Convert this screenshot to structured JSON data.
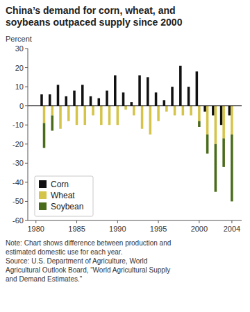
{
  "chart_data": {
    "type": "bar",
    "title": "China’s demand for corn, wheat, and\nsoybeans outpaced supply since 2000",
    "ylabel": "Percent",
    "note": "Note: Chart shows difference between production and\nestimated domestic use for each year.\nSource: U.S. Department of Agriculture, World\nAgricultural Outlook Board, “World Agricultural Supply\nand Demand Estimates.”",
    "x": [
      1980,
      1981,
      1982,
      1983,
      1984,
      1985,
      1986,
      1987,
      1988,
      1989,
      1990,
      1991,
      1992,
      1993,
      1994,
      1995,
      1996,
      1997,
      1998,
      1999,
      2000,
      2001,
      2002,
      2003,
      2004
    ],
    "series": [
      {
        "name": "Corn",
        "color": "#111111",
        "values": [
          0,
          6,
          6,
          11,
          5,
          8,
          11,
          5,
          4,
          8,
          16,
          7,
          2,
          16,
          15,
          7,
          3,
          10,
          21,
          10,
          18,
          -3,
          -5,
          -10,
          -5
        ]
      },
      {
        "name": "Wheat",
        "color": "#d4c44a",
        "stacked": true,
        "values": [
          0,
          -9,
          -5,
          -12,
          -8,
          -10,
          -10,
          -5,
          -10,
          -10,
          -10,
          -2,
          -5,
          -12,
          -15,
          -8,
          -3,
          -5,
          -5,
          -5,
          -8,
          -15,
          -20,
          -17,
          -15
        ]
      },
      {
        "name": "Soybean",
        "color": "#4a6b1a",
        "stacked": true,
        "values": [
          0,
          -13,
          -8,
          0,
          0,
          0,
          0,
          0,
          0,
          0,
          0,
          0,
          0,
          0,
          0,
          0,
          0,
          0,
          0,
          0,
          -3,
          -10,
          -25,
          -15,
          -35
        ]
      }
    ],
    "xlim": [
      1979.0,
      2005.2
    ],
    "ylim": [
      -60,
      30
    ],
    "yticks": [
      -60,
      -50,
      -40,
      -30,
      -20,
      -10,
      0,
      10,
      20,
      30
    ],
    "xticks": [
      1980,
      1985,
      1990,
      1995,
      2000,
      2004
    ],
    "grid": false,
    "legend": "lower left"
  }
}
